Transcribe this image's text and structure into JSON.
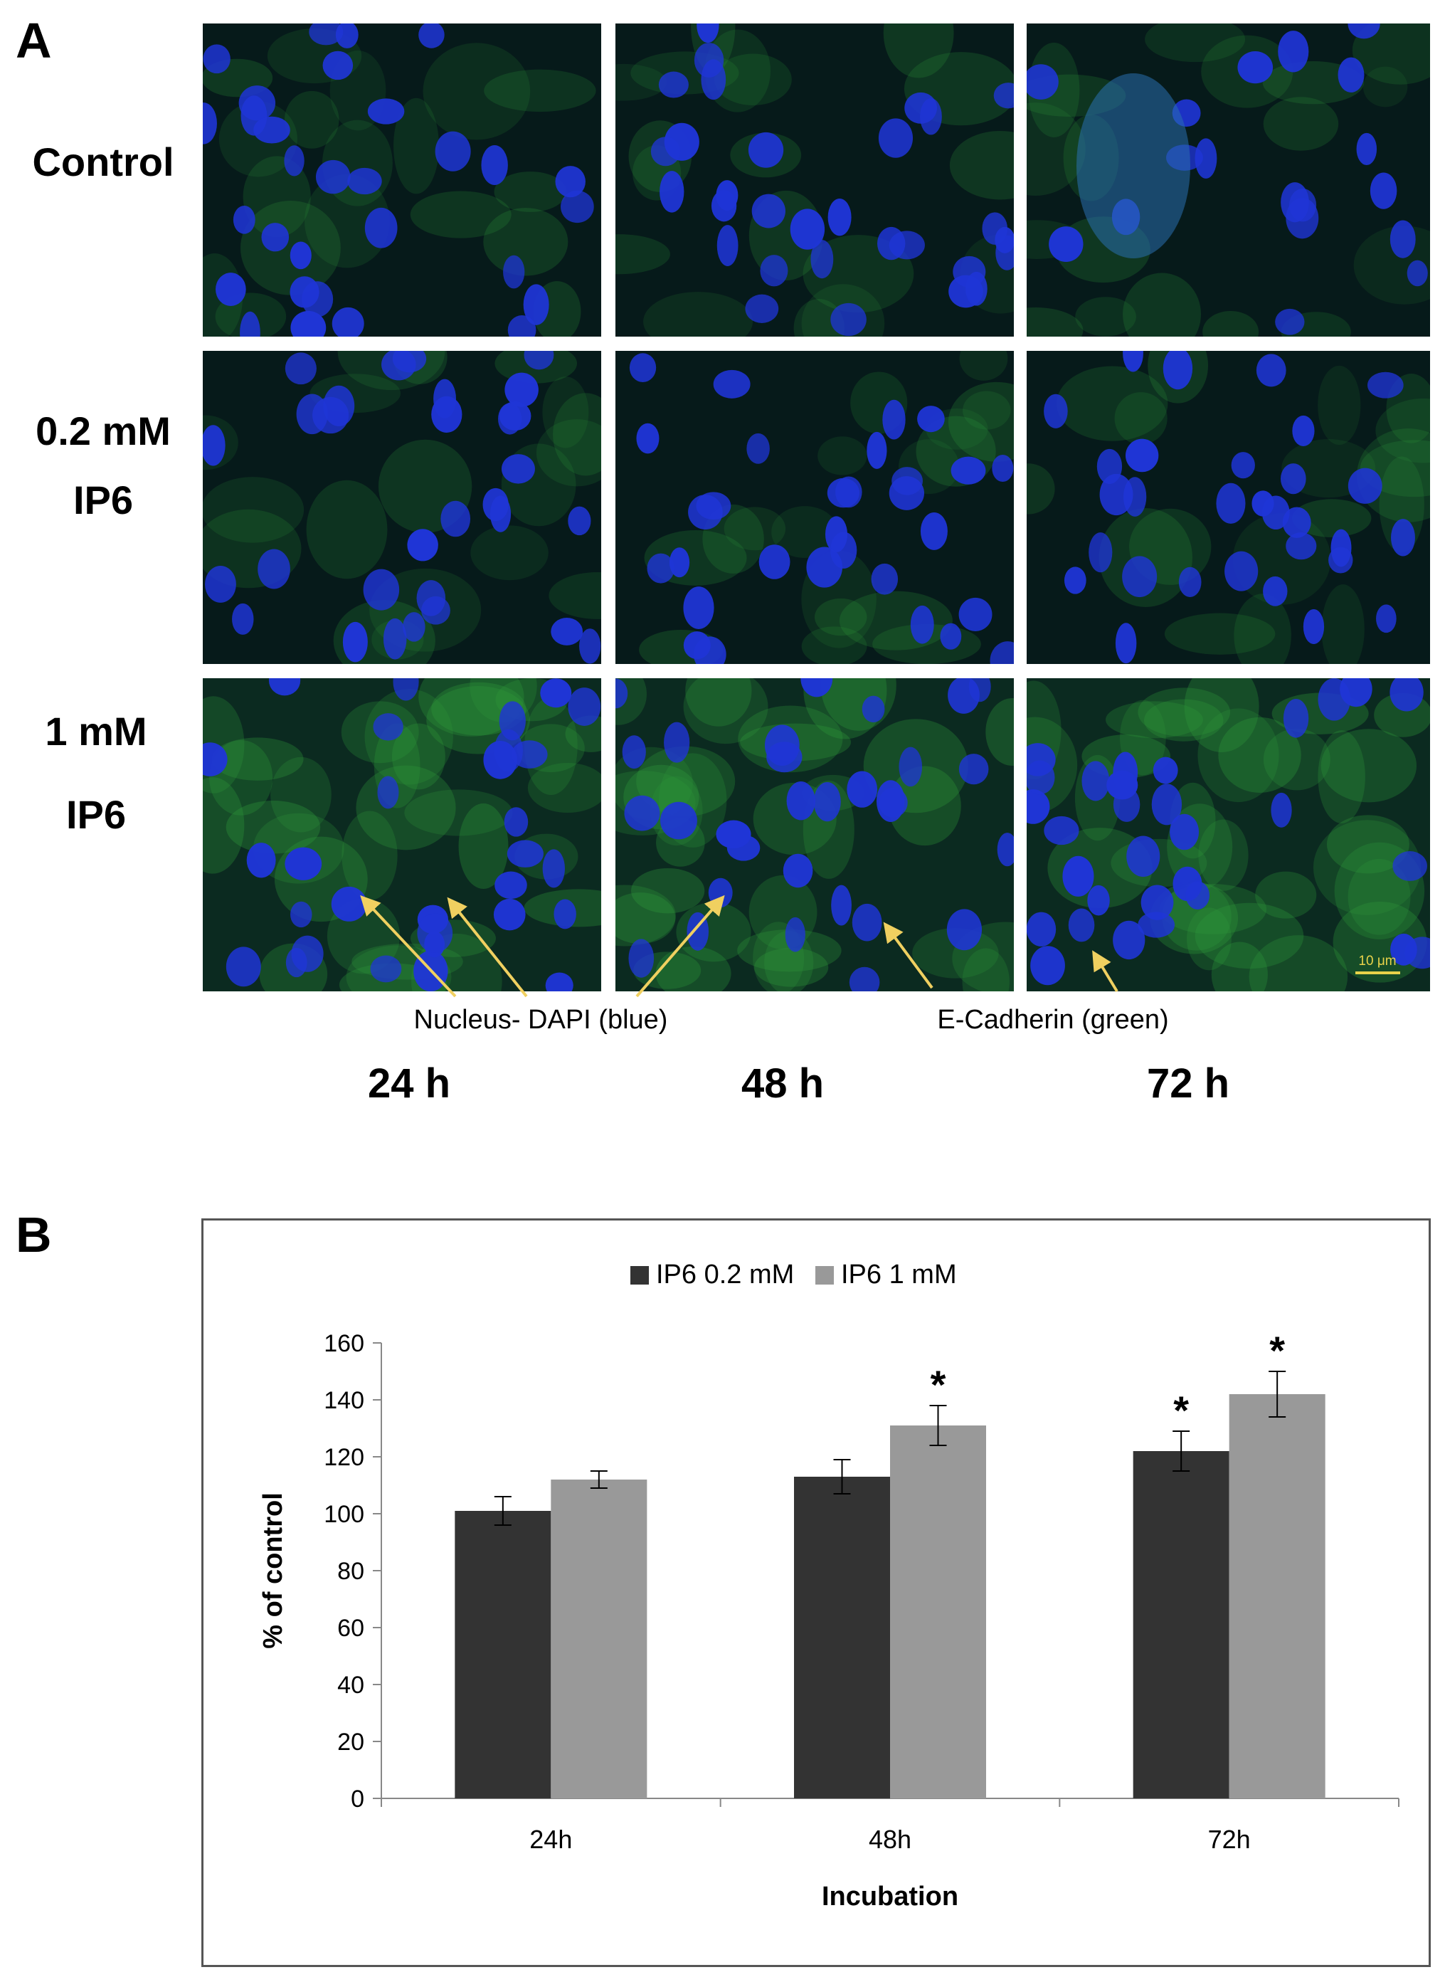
{
  "panel_a": {
    "letter": "A",
    "rows": [
      "Control",
      "0.2 mM",
      "IP6",
      "1 mM",
      "IP6"
    ],
    "columns": [
      "24 h",
      "48 h",
      "72 h"
    ],
    "stain_nucleus": "Nucleus- DAPI (blue)",
    "stain_cadherin": "E-Cadherin (green)",
    "scale_bar": "10 μm",
    "colors": {
      "nucleus": "#1f35d6",
      "cadherin": "#2f9a3a",
      "arrow": "#f0d060"
    }
  },
  "panel_b": {
    "letter": "B"
  },
  "chart_data": {
    "type": "bar",
    "categories": [
      "24h",
      "48h",
      "72h"
    ],
    "series": [
      {
        "name": "IP6 0.2 mM",
        "values": [
          101,
          113,
          122
        ],
        "errors": [
          5,
          6,
          7
        ],
        "significant": [
          false,
          false,
          true
        ],
        "color": "#333333"
      },
      {
        "name": "IP6 1 mM",
        "values": [
          112,
          131,
          142
        ],
        "errors": [
          3,
          7,
          8
        ],
        "significant": [
          false,
          true,
          true
        ],
        "color": "#999999"
      }
    ],
    "significance_marker": "*",
    "xlabel": "Incubation",
    "ylabel": "% of control",
    "ylim": [
      0,
      160
    ],
    "yticks": [
      0,
      20,
      40,
      60,
      80,
      100,
      120,
      140,
      160
    ],
    "legend_position": "top-center",
    "grid": false
  }
}
